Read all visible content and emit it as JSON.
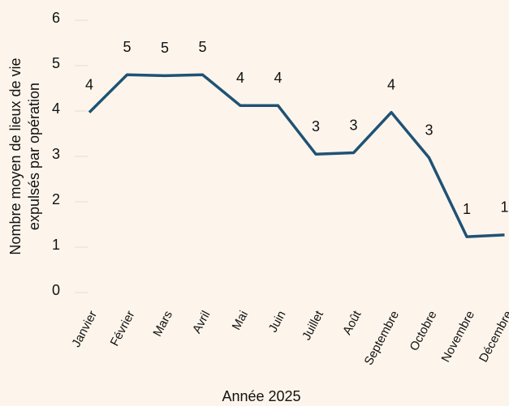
{
  "chart_data": {
    "type": "line",
    "xlabel": "Année 2025",
    "ylabel": [
      "Nombre moyen de lieux de vie",
      "expulsés par opération"
    ],
    "categories": [
      "Janvier",
      "Février",
      "Mars",
      "Avril",
      "Mai",
      "Juin",
      "Juillet",
      "Août",
      "Septembre",
      "Octobre",
      "Novembre",
      "Décembre"
    ],
    "values": [
      3.97,
      4.8,
      4.78,
      4.8,
      4.12,
      4.12,
      3.05,
      3.08,
      3.97,
      2.97,
      1.23,
      1.27
    ],
    "value_labels": [
      "4",
      "5",
      "5",
      "5",
      "4",
      "4",
      "3",
      "3",
      "4",
      "3",
      "1",
      "1"
    ],
    "color": "#1f5275",
    "ylim": [
      0,
      6
    ],
    "yticks": [
      0,
      1,
      2,
      3,
      4,
      5,
      6
    ]
  }
}
